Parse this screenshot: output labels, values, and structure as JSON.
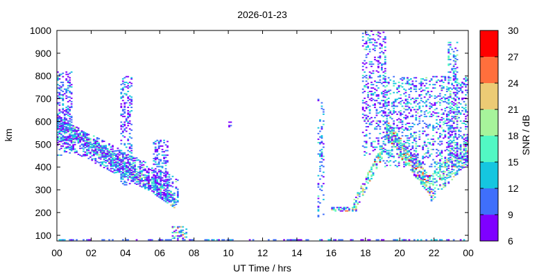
{
  "chart_data": {
    "type": "heatmap",
    "title": "2026-01-23",
    "xlabel": "UT Time / hrs",
    "ylabel": "km",
    "xlim": [
      0,
      24
    ],
    "ylim": [
      75,
      1000
    ],
    "x_ticks": [
      "00",
      "02",
      "04",
      "06",
      "08",
      "10",
      "12",
      "14",
      "16",
      "18",
      "20",
      "22",
      "00"
    ],
    "y_ticks": [
      "100",
      "200",
      "300",
      "400",
      "500",
      "600",
      "700",
      "800",
      "900",
      "1000"
    ],
    "grid": false,
    "colorbar": {
      "label": "SNR / dB",
      "min": 6,
      "max": 30,
      "ticks": [
        "6",
        "9",
        "12",
        "15",
        "18",
        "21",
        "24",
        "27",
        "30"
      ],
      "bins": [
        {
          "from": 6,
          "to": 9,
          "color": "#7f00ff"
        },
        {
          "from": 9,
          "to": 12,
          "color": "#3f6ffb"
        },
        {
          "from": 12,
          "to": 15,
          "color": "#15c6e0"
        },
        {
          "from": 15,
          "to": 18,
          "color": "#52f8c4"
        },
        {
          "from": 18,
          "to": 21,
          "color": "#a7f49b"
        },
        {
          "from": 21,
          "to": 24,
          "color": "#eccb75"
        },
        {
          "from": 24,
          "to": 27,
          "color": "#ff6f3c"
        },
        {
          "from": 27,
          "to": 30,
          "color": "#ff0000"
        }
      ]
    },
    "regions": [
      {
        "name": "ground-band",
        "x0": 0.0,
        "x1": 24.0,
        "y0": 78,
        "y1": 82,
        "density": 0.45,
        "snr_mean": 10,
        "snr_spread": 2
      },
      {
        "name": "overnight-trace-a",
        "x0": 0.0,
        "x1": 6.8,
        "y0_start": 600,
        "y0_end": 250,
        "thickness": 60,
        "density": 0.55,
        "snr_mean": 13,
        "snr_spread": 5
      },
      {
        "name": "overnight-trace-b",
        "x0": 0.0,
        "x1": 7.0,
        "y0_start": 560,
        "y0_end": 290,
        "thickness": 120,
        "density": 0.35,
        "snr_mean": 10,
        "snr_spread": 4
      },
      {
        "name": "spread-f-0-1",
        "x0": 0.0,
        "x1": 0.8,
        "y0": 450,
        "y1": 820,
        "density": 0.3,
        "snr_mean": 10,
        "snr_spread": 3
      },
      {
        "name": "column-04",
        "x0": 3.7,
        "x1": 4.3,
        "y0": 320,
        "y1": 800,
        "density": 0.28,
        "snr_mean": 10,
        "snr_spread": 3
      },
      {
        "name": "column-06",
        "x0": 5.6,
        "x1": 6.4,
        "y0": 300,
        "y1": 520,
        "density": 0.3,
        "snr_mean": 10,
        "snr_spread": 3
      },
      {
        "name": "post-sunrise-tail",
        "x0": 6.7,
        "x1": 7.5,
        "y0": 85,
        "y1": 140,
        "density": 0.4,
        "snr_mean": 12,
        "snr_spread": 6
      },
      {
        "name": "isolated-10",
        "x0": 10.0,
        "x1": 10.2,
        "y0": 575,
        "y1": 600,
        "density": 0.6,
        "snr_mean": 9,
        "snr_spread": 1
      },
      {
        "name": "evening-column-15",
        "x0": 15.2,
        "x1": 15.5,
        "y0": 180,
        "y1": 700,
        "density": 0.2,
        "snr_mean": 11,
        "snr_spread": 3
      },
      {
        "name": "evening-flat-16",
        "x0": 16.0,
        "x1": 17.5,
        "y0": 205,
        "y1": 225,
        "density": 0.55,
        "snr_mean": 13,
        "snr_spread": 6
      },
      {
        "name": "evening-rise-17-19",
        "x0": 17.3,
        "x1": 19.0,
        "y0_start": 230,
        "y0_end": 480,
        "thickness": 60,
        "density": 0.5,
        "snr_mean": 16,
        "snr_spread": 6
      },
      {
        "name": "evening-column-18",
        "x0": 17.8,
        "x1": 19.2,
        "y0": 450,
        "y1": 1000,
        "density": 0.2,
        "snr_mean": 10,
        "snr_spread": 4
      },
      {
        "name": "night-trace-20-22",
        "x0": 19.2,
        "x1": 21.8,
        "y0_start": 560,
        "y0_end": 310,
        "thickness": 90,
        "density": 0.6,
        "snr_mean": 17,
        "snr_spread": 6
      },
      {
        "name": "night-trace-22-24",
        "x0": 21.8,
        "x1": 24.0,
        "y0_start": 310,
        "y0_end": 480,
        "thickness": 120,
        "density": 0.4,
        "snr_mean": 14,
        "snr_spread": 5
      },
      {
        "name": "night-upper-spread",
        "x0": 19.0,
        "x1": 24.0,
        "y0": 400,
        "y1": 800,
        "density": 0.22,
        "snr_mean": 11,
        "snr_spread": 4
      },
      {
        "name": "late-column-23",
        "x0": 22.8,
        "x1": 23.4,
        "y0": 450,
        "y1": 950,
        "density": 0.25,
        "snr_mean": 12,
        "snr_spread": 4
      }
    ]
  }
}
